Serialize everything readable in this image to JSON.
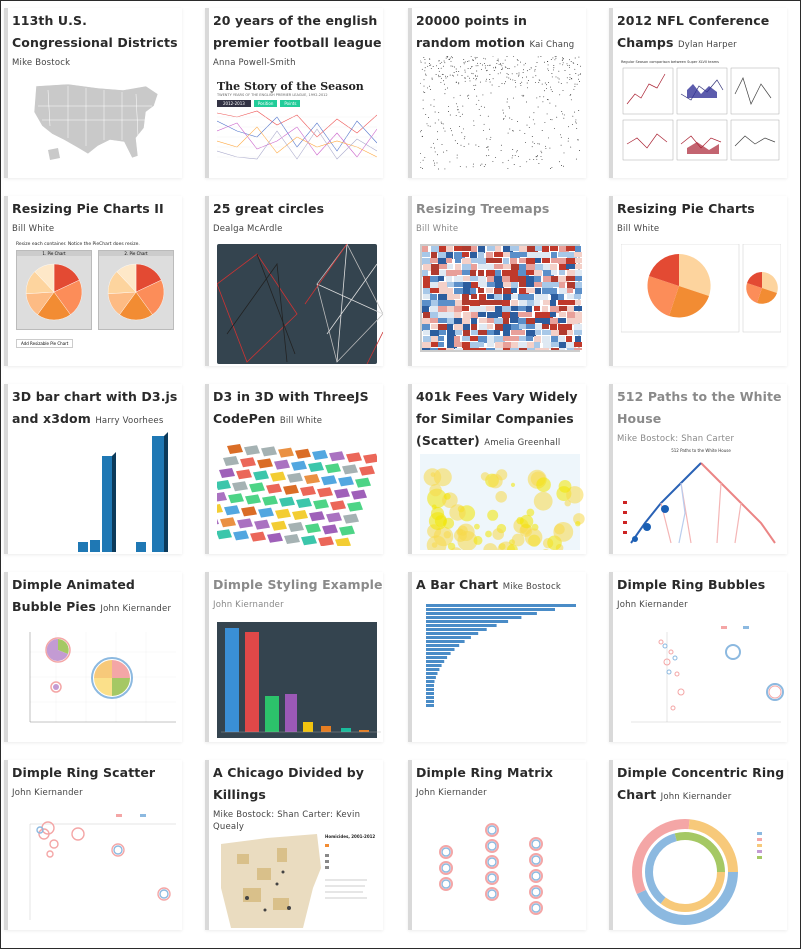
{
  "cards": [
    {
      "title": "113th U.S. Congressional Districts",
      "author": "Mike Bostock"
    },
    {
      "title": "20 years of the english premier football league",
      "author": "Anna Powell-Smith",
      "thumb_heading": "The Story of the Season",
      "thumb_sub": "TWENTY YEARS OF THE ENGLISH PREMIER LEAGUE, 1992-2012",
      "thumb_select": "2012-2013",
      "thumb_btn1": "Position",
      "thumb_btn2": "Points"
    },
    {
      "title": "20000 points in random motion",
      "author": "Kai Chang"
    },
    {
      "title": "2012 NFL Conference Champs",
      "author": "Dylan Harper",
      "thumb_caption": "Regular Season comparison between Super XLVII teams"
    },
    {
      "title": "Resizing Pie Charts II",
      "author": "Bill White",
      "thumb_text": "Resize each container. Notice the PieChart does resize.",
      "thumb_panel1": "1. Pie Chart",
      "thumb_panel2": "2. Pie Chart",
      "thumb_button": "Add Resizable Pie Chart"
    },
    {
      "title": "25 great circles",
      "author": "Dealga McArdle"
    },
    {
      "title": "Resizing Treemaps",
      "author": "Bill White"
    },
    {
      "title": "Resizing Pie Charts",
      "author": "Bill White"
    },
    {
      "title": "3D bar chart with D3.js and x3dom",
      "author": "Harry Voorhees"
    },
    {
      "title": "D3 in 3D with ThreeJS CodePen",
      "author": "Bill White"
    },
    {
      "title": "401k Fees Vary Widely for Similar Companies (Scatter)",
      "author": "Amelia Greenhall"
    },
    {
      "title": "512 Paths to the White House",
      "author": "Mike Bostock: Shan Carter",
      "thumb_caption": "512 Paths to the White House"
    },
    {
      "title": "Dimple Animated Bubble Pies",
      "author": "John Kiernander"
    },
    {
      "title": "Dimple Styling Example",
      "author": "John Kiernander"
    },
    {
      "title": "A Bar Chart",
      "author": "Mike Bostock"
    },
    {
      "title": "Dimple Ring Bubbles",
      "author": "John Kiernander"
    },
    {
      "title": "Dimple Ring Scatter",
      "author": "John Kiernander"
    },
    {
      "title": "A Chicago Divided by Killings",
      "author": "Mike Bostock: Shan Carter: Kevin Quealy",
      "thumb_caption": "Homicides, 2001-2012"
    },
    {
      "title": "Dimple Ring Matrix",
      "author": "John Kiernander"
    },
    {
      "title": "Dimple Concentric Ring Chart",
      "author": "John Kiernander"
    }
  ],
  "colors": {
    "card_border": "#d9d9d9",
    "dark_panel": "#34444f",
    "orange": "#f28c33",
    "blue": "#2f7fb6"
  }
}
